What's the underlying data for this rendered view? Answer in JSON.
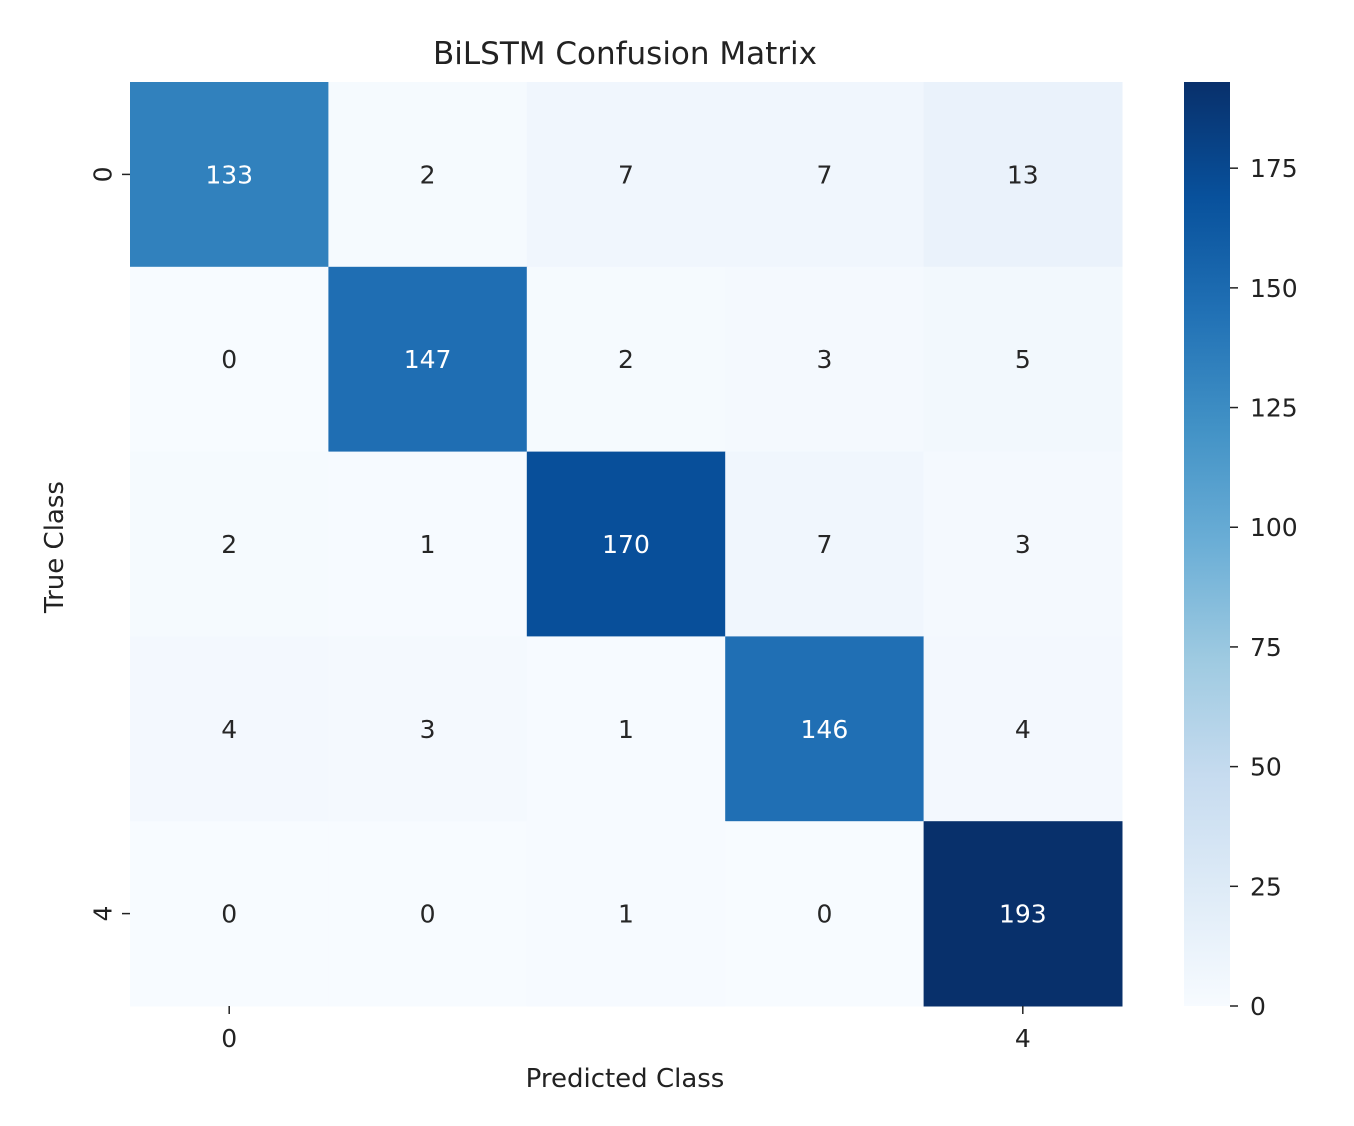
{
  "chart_data": {
    "type": "heatmap",
    "title": "BiLSTM Confusion Matrix",
    "xlabel": "Predicted Class",
    "ylabel": "True Class",
    "x_tick_labels": [
      {
        "index": 0,
        "label": "0"
      },
      {
        "index": 4,
        "label": "4"
      }
    ],
    "y_tick_labels": [
      {
        "index": 0,
        "label": "0"
      },
      {
        "index": 4,
        "label": "4"
      }
    ],
    "matrix": [
      [
        133,
        2,
        7,
        7,
        13
      ],
      [
        0,
        147,
        2,
        3,
        5
      ],
      [
        2,
        1,
        170,
        7,
        3
      ],
      [
        4,
        3,
        1,
        146,
        4
      ],
      [
        0,
        0,
        1,
        0,
        193
      ]
    ],
    "colorbar": {
      "range": [
        0,
        193
      ],
      "ticks": [
        0,
        25,
        50,
        75,
        100,
        125,
        150,
        175
      ]
    },
    "colormap": "Blues",
    "colors": {
      "low": "#f7fbff",
      "high": "#08306b"
    }
  }
}
